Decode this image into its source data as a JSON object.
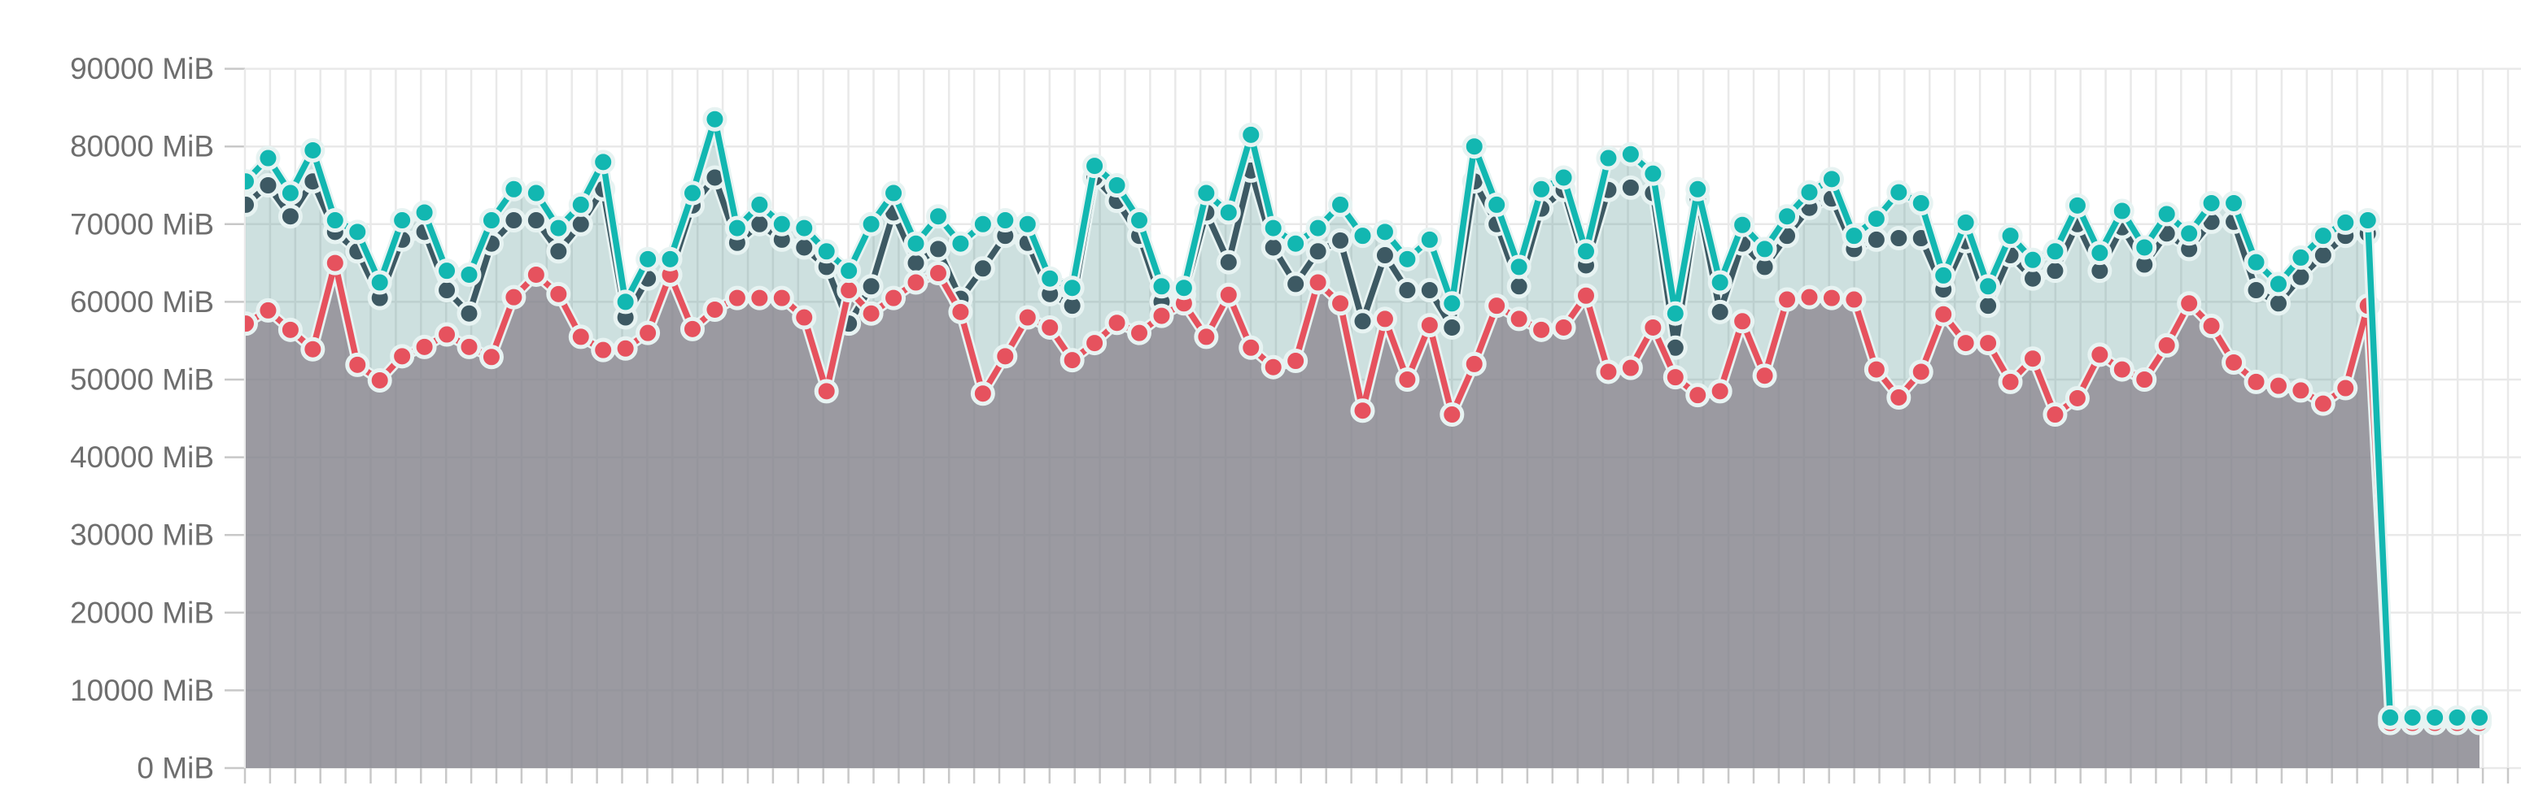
{
  "chart_data": {
    "type": "line",
    "unit": "MiB",
    "title": "",
    "xlabel": "",
    "ylabel": "",
    "ylim": [
      0,
      90000
    ],
    "y_tick_step": 10000,
    "y_tick_labels": [
      "90000 MiB",
      "80000 MiB",
      "70000 MiB",
      "60000 MiB",
      "50000 MiB",
      "40000 MiB",
      "30000 MiB",
      "20000 MiB",
      "10000 MiB",
      "0 MiB"
    ],
    "x_tick_labels": [],
    "grid": true,
    "legend_position": "none",
    "point_count": 101,
    "colors": {
      "background": "#ffffff",
      "grid_line": "#e9e9e9",
      "tick_mark": "#c8c8c8",
      "axis_label": "#6e6e6e",
      "teal_line": "#12b7b1",
      "teal_area": "rgba(70, 140, 137, 0.27)",
      "slate_line": "#3d5963",
      "red_line": "#e6525e",
      "gray_area": "rgba(138, 131, 140, 0.75)",
      "dot_halo": "#e7f3f2"
    },
    "series": [
      {
        "name": "teal-series",
        "color": "#12b7b1",
        "area_fill": "rgba(70, 140, 137, 0.27)",
        "values": [
          75500,
          78500,
          74000,
          79500,
          70500,
          69000,
          62500,
          70500,
          71500,
          64000,
          63500,
          70500,
          74500,
          74000,
          69500,
          72500,
          78000,
          60000,
          65500,
          65500,
          74000,
          83500,
          69500,
          72500,
          70000,
          69500,
          66500,
          64000,
          70000,
          74000,
          67500,
          71000,
          67500,
          70000,
          70500,
          70000,
          63000,
          61800,
          77500,
          75000,
          70500,
          62000,
          61800,
          74000,
          71500,
          81500,
          69500,
          67500,
          69500,
          72500,
          68500,
          69000,
          65500,
          68000,
          59800,
          80000,
          72500,
          64500,
          74500,
          76000,
          66500,
          78500,
          79000,
          76500,
          58500,
          74500,
          62500,
          69900,
          66800,
          71000,
          74100,
          75800,
          68500,
          70700,
          74100,
          72700,
          63400,
          70200,
          62000,
          68500,
          65400,
          66500,
          72400,
          66300,
          71700,
          67000,
          71300,
          68800,
          72700,
          72700,
          65100,
          62300,
          65700,
          68500,
          70200,
          70500,
          6500,
          6500,
          6500,
          6500,
          6500
        ]
      },
      {
        "name": "slate-series",
        "color": "#3d5963",
        "area_fill": "none",
        "values": [
          72500,
          75000,
          71000,
          75500,
          69000,
          66500,
          60500,
          68000,
          69000,
          61500,
          58500,
          67500,
          70500,
          70500,
          66500,
          70000,
          74500,
          58000,
          63000,
          63500,
          72400,
          76000,
          67600,
          70000,
          68000,
          67000,
          64500,
          57200,
          62000,
          71500,
          65000,
          66800,
          60400,
          64300,
          68500,
          67600,
          61000,
          59500,
          76000,
          73000,
          68500,
          60000,
          60900,
          71500,
          65100,
          76900,
          67000,
          62300,
          66500,
          67900,
          57500,
          66000,
          61500,
          61500,
          56700,
          75500,
          70000,
          62000,
          72000,
          74400,
          64700,
          74400,
          74700,
          74000,
          54100,
          73300,
          58700,
          67500,
          64500,
          68500,
          72100,
          73300,
          66800,
          68000,
          68200,
          68200,
          61600,
          67800,
          59500,
          66000,
          63000,
          64000,
          70000,
          64000,
          69600,
          64800,
          68800,
          66800,
          70300,
          70300,
          61500,
          59800,
          63200,
          66000,
          68500,
          68800,
          6200,
          6200,
          6200,
          6200,
          6200
        ]
      },
      {
        "name": "red-series",
        "color": "#e6525e",
        "area_fill": "rgba(138, 131, 140, 0.75)",
        "values": [
          57200,
          58900,
          56400,
          53900,
          65000,
          51900,
          49900,
          53000,
          54200,
          55800,
          54200,
          52900,
          60600,
          63500,
          61000,
          55500,
          53800,
          54000,
          56000,
          63500,
          56500,
          59000,
          60500,
          60500,
          60500,
          58000,
          48500,
          61500,
          58500,
          60500,
          62500,
          63700,
          58700,
          48200,
          53000,
          58000,
          56700,
          52500,
          54700,
          57300,
          56000,
          58200,
          59800,
          55500,
          60900,
          54100,
          51600,
          52400,
          62500,
          59800,
          46000,
          57800,
          50000,
          57000,
          45500,
          52000,
          59500,
          57800,
          56400,
          56700,
          60800,
          51000,
          51500,
          56700,
          50300,
          48000,
          48500,
          57500,
          50500,
          60300,
          60600,
          60500,
          60300,
          51300,
          47700,
          51000,
          58400,
          54700,
          54700,
          49700,
          52700,
          45500,
          47600,
          53200,
          51300,
          50000,
          54400,
          59800,
          56900,
          52200,
          49700,
          49200,
          48600,
          46900,
          48900,
          59500,
          5800,
          5800,
          5800,
          5800,
          5800
        ]
      }
    ]
  }
}
